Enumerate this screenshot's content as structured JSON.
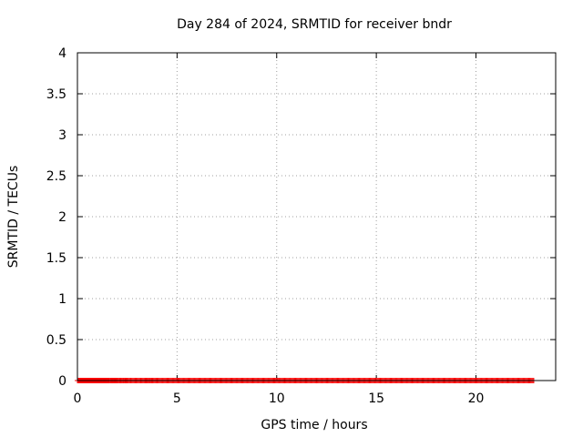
{
  "chart_data": {
    "type": "scatter",
    "title": "Day 284 of 2024, SRMTID for receiver bndr",
    "xlabel": "GPS time / hours",
    "ylabel": "SRMTID / TECUs",
    "xlim": [
      0,
      24
    ],
    "ylim": [
      0,
      4
    ],
    "xticks": [
      0,
      5,
      10,
      15,
      20
    ],
    "yticks": [
      0,
      0.5,
      1,
      1.5,
      2,
      2.5,
      3,
      3.5,
      4
    ],
    "xtick_labels": [
      "0",
      "5",
      "10",
      "15",
      "20"
    ],
    "ytick_labels": [
      "0",
      "0.5",
      "1",
      "1.5",
      "2",
      "2.5",
      "3",
      "3.5",
      "4"
    ],
    "grid": true,
    "marker": "plus",
    "color": "#ff0000",
    "series": [
      {
        "name": "SRMTID",
        "x": [
          0.0,
          0.05,
          0.1,
          0.15,
          0.2,
          0.25,
          0.3,
          0.35,
          0.4,
          0.45,
          0.5,
          0.55,
          0.6,
          0.65,
          0.7,
          0.75,
          0.8,
          0.85,
          0.9,
          0.95,
          1.0,
          1.05,
          1.1,
          1.15,
          1.2,
          1.25,
          1.3,
          1.35,
          1.4,
          1.45,
          1.5,
          1.55,
          1.6,
          1.65,
          1.7,
          1.75,
          1.8,
          1.85,
          1.9,
          1.95,
          2.0,
          2.05,
          2.1,
          2.15,
          2.2,
          2.25,
          2.3,
          2.35,
          2.4,
          2.45,
          2.5,
          2.55,
          2.6,
          2.65,
          2.7,
          2.75,
          2.8,
          2.85,
          2.9,
          2.95,
          3.0,
          3.05,
          3.1,
          3.15,
          3.2,
          3.25,
          3.3,
          3.35,
          3.4,
          3.45,
          3.5,
          3.55,
          3.6,
          3.65,
          3.7,
          3.75,
          3.8,
          3.85,
          3.9,
          3.95,
          4.0,
          4.05,
          4.1,
          4.15,
          4.2,
          4.25,
          4.3,
          4.35,
          4.4,
          4.45,
          4.5,
          4.55,
          4.6,
          4.65,
          4.7,
          4.75,
          4.8,
          4.85,
          4.9,
          4.95,
          5.0,
          5.05,
          5.1,
          5.15,
          5.2,
          5.25,
          5.3,
          5.35,
          5.4,
          5.45,
          5.5,
          5.55,
          5.6,
          5.65,
          5.7,
          5.75,
          5.8,
          5.85,
          5.9,
          5.95,
          6.0,
          6.05,
          6.1,
          6.15,
          6.2,
          6.25,
          6.3,
          6.35,
          6.4,
          6.45,
          6.5,
          6.55,
          6.6,
          6.65,
          6.7,
          6.75,
          6.8,
          6.85,
          6.9,
          6.95,
          7.0,
          7.05,
          7.1,
          7.15,
          7.2,
          7.25,
          7.3,
          7.35,
          7.4,
          7.45,
          7.5,
          7.55,
          7.6,
          7.65,
          7.7,
          7.75,
          7.8,
          7.85,
          7.9,
          7.95,
          8.0,
          8.05,
          8.1,
          8.15,
          8.2,
          8.25,
          8.3,
          8.35,
          8.4,
          8.45,
          8.5,
          8.55,
          8.6,
          8.65,
          8.7,
          8.75,
          8.8,
          8.85,
          8.9,
          8.95,
          9.0,
          9.05,
          9.1,
          9.15,
          9.2,
          9.25,
          9.3,
          9.35,
          9.4,
          9.45,
          9.5,
          9.55,
          9.6,
          9.65,
          9.7,
          9.75,
          9.8,
          9.85,
          9.9,
          9.95,
          10.0,
          10.05,
          10.1,
          10.15,
          10.2,
          10.25,
          10.3,
          10.35,
          10.4,
          10.45,
          10.5,
          10.55,
          10.6,
          10.65,
          10.7,
          10.75,
          10.8,
          10.85,
          10.9,
          10.95,
          11.0,
          11.05,
          11.1,
          11.15,
          11.2,
          11.25,
          11.3,
          11.35,
          11.4,
          11.45,
          11.5,
          11.55,
          11.6,
          11.65,
          11.7,
          11.75,
          11.8,
          11.85,
          11.9,
          11.95,
          12.0,
          12.05,
          12.1,
          12.15,
          12.2,
          12.25,
          12.3,
          12.35,
          12.4,
          12.45,
          12.5,
          12.55,
          12.6,
          12.65,
          12.7,
          12.75,
          12.8,
          12.85,
          12.9,
          12.95,
          13.0,
          13.05,
          13.1,
          13.15,
          13.2,
          13.25,
          13.3,
          13.35,
          13.4,
          13.45,
          13.5,
          13.55,
          13.6,
          13.65,
          13.7,
          13.75,
          13.8,
          13.85,
          13.9,
          13.95,
          14.0,
          14.05,
          14.1,
          14.15,
          14.2,
          14.25,
          14.3,
          14.35,
          14.4,
          14.45,
          14.5,
          14.55,
          14.6,
          14.65,
          14.7,
          14.75,
          14.8,
          14.85,
          14.9,
          14.95,
          15.0,
          15.05,
          15.1,
          15.15,
          15.2,
          15.25,
          15.3,
          15.35,
          15.4,
          15.45,
          15.5,
          15.55,
          15.6,
          15.65,
          15.7,
          15.75,
          15.8,
          15.85,
          15.9,
          15.95,
          16.0,
          16.05,
          16.1,
          16.15,
          16.2,
          16.25,
          16.3,
          16.35,
          16.4,
          16.45,
          16.5,
          16.55,
          16.6,
          16.65,
          16.7,
          16.75,
          16.8,
          16.85,
          16.9,
          16.95,
          17.0,
          17.05,
          17.1,
          17.15,
          17.2,
          17.25,
          17.3,
          17.35,
          17.4,
          17.45,
          17.5,
          17.55,
          17.6,
          17.65,
          17.7,
          17.75,
          17.8,
          17.85,
          17.9,
          17.95,
          18.0,
          18.05,
          18.1,
          18.15,
          18.2,
          18.25,
          18.3,
          18.35,
          18.4,
          18.45,
          18.5,
          18.55,
          18.6,
          18.65,
          18.7,
          18.75,
          18.8,
          18.85,
          18.9,
          18.95,
          19.0,
          19.05,
          19.1,
          19.15,
          19.2,
          19.25,
          19.3,
          19.35,
          19.4,
          19.45,
          19.5,
          19.55,
          19.6,
          19.65,
          19.7,
          19.75,
          19.8,
          19.85,
          19.9,
          19.95,
          20.0,
          20.05,
          20.1,
          20.15,
          20.2,
          20.25,
          20.3,
          20.35,
          20.4,
          20.45,
          20.5,
          20.55,
          20.6,
          20.65,
          20.7,
          20.75,
          20.8,
          20.85,
          20.9,
          20.95,
          21.0,
          21.05,
          21.1,
          21.15,
          21.2,
          21.25,
          21.3,
          21.35,
          21.4,
          21.45,
          21.5,
          21.55,
          21.6,
          21.65,
          21.7,
          21.75,
          21.8,
          21.85,
          21.9,
          21.95,
          22.0,
          22.05,
          22.1,
          22.15,
          22.2,
          22.25,
          22.3,
          22.35,
          22.4,
          22.45,
          22.5,
          22.55,
          22.6,
          22.65,
          22.7,
          22.75,
          22.8,
          22.85,
          22.9,
          0.7,
          0.85,
          1.7,
          2.3,
          2.5,
          2.45,
          2.2,
          1.9,
          1.4,
          0.9,
          0.6,
          0.8,
          1.4,
          3.8,
          3.7,
          3.6,
          3.4,
          3.15,
          2.7,
          2.1,
          1.75,
          1.4,
          1.2,
          1.05,
          0.95,
          0.85,
          0.8,
          1.9,
          1.75,
          1.6,
          0.95,
          0.75,
          1.55,
          1.5,
          1.3,
          1.6,
          1.55,
          1.45,
          1.2,
          1.0,
          0.95,
          0.9,
          0.8,
          0.75,
          0.65,
          0.7,
          0.75,
          0.85,
          0.8,
          0.75,
          0.7,
          0.65,
          0.55,
          0.5,
          1.2,
          1.1,
          1.0,
          1.1,
          1.0,
          0.9,
          0.75,
          0.7,
          0.6,
          0.55,
          0.5,
          0.45,
          0.4,
          0.35,
          0.3,
          0.3,
          0.35,
          0.3,
          0.25,
          0.3,
          0.35,
          0.4,
          0.45,
          0.5,
          0.55,
          0.5,
          0.45,
          0.45,
          0.5,
          0.55,
          1.15,
          1.05,
          0.95,
          0.85,
          0.75,
          0.65,
          0.6,
          0.55,
          0.5,
          0.45,
          0.4,
          0.35,
          0.3,
          0.3,
          0.35,
          0.3,
          0.25,
          0.3,
          0.35,
          0.3,
          0.25,
          0.3,
          0.35,
          0.4,
          0.45,
          0.5,
          0.55,
          0.5,
          0.45,
          0.4,
          0.35,
          0.3,
          0.35,
          0.4,
          0.45,
          0.5,
          0.7,
          0.65,
          0.6,
          0.5,
          0.55,
          0.5,
          0.45,
          0.4,
          0.35,
          0.4,
          0.45,
          0.5,
          0.45,
          0.4,
          0.35,
          0.3,
          0.35,
          0.3,
          0.25,
          0.3,
          0.35,
          0.4,
          0.45,
          0.4,
          0.35,
          0.3,
          0.25,
          0.3,
          0.35,
          0.4,
          0.45,
          0.4,
          0.35,
          0.3,
          0.35,
          0.4,
          0.5,
          0.45,
          0.4,
          0.35,
          0.3,
          0.35,
          0.3,
          0.25,
          0.3,
          0.35,
          0.4,
          0.45,
          0.5,
          0.6,
          0.5,
          0.5,
          0.45,
          0.45,
          0.4,
          0.4,
          0.35,
          0.3,
          0.3,
          0.25,
          0.2,
          0.2,
          0.25,
          0.3,
          0.35,
          0.3,
          0.25,
          0.25,
          0.2,
          0.15,
          0.15,
          0.2,
          0.25,
          0.2,
          0.15,
          0.15,
          0.2,
          0.25,
          0.3,
          0.35,
          0.4,
          0.35,
          0.3,
          0.25,
          0.2,
          0.2,
          0.25,
          0.3,
          0.35,
          0.3,
          0.25,
          0.2,
          0.25,
          0.3,
          0.25,
          0.2,
          0.15,
          0.2,
          0.25,
          0.3,
          0.35,
          0.3,
          0.25,
          0.2,
          0.15,
          0.1,
          0.1,
          0.15,
          0.2,
          0.25,
          0.2,
          0.15,
          0.2,
          0.25,
          0.3,
          0.35,
          0.3,
          0.25,
          0.2,
          0.15,
          0.2,
          0.25,
          0.2,
          0.2,
          0.25,
          0.3,
          0.35,
          0.4,
          0.45,
          0.5,
          0.55,
          0.45,
          0.4,
          0.35,
          0.3,
          0.25,
          0.2,
          0.25,
          0.3,
          0.35,
          0.3,
          0.25,
          0.2,
          0.2,
          0.25,
          0.3,
          0.35,
          0.4,
          0.35,
          0.3,
          0.25,
          0.2,
          0.15,
          0.2,
          0.25,
          0.3,
          0.35,
          0.3,
          0.25,
          0.2,
          0.15,
          0.1,
          0.15,
          0.2,
          0.25,
          0.3,
          0.35,
          0.3,
          0.25,
          0.2,
          0.25,
          0.3,
          0.35,
          0.4,
          0.45,
          0.5,
          0.55,
          0.6,
          0.55,
          0.5,
          0.45,
          0.4,
          0.35,
          0.3,
          0.35,
          0.4,
          0.45,
          0.5,
          0.7,
          0.75,
          0.8,
          0.9,
          1.05,
          1.15,
          1.2,
          1.15,
          1.2,
          1.5,
          1.6,
          1.75,
          1.95,
          1.85,
          1.7,
          0.95,
          0.85,
          0.8,
          0.75,
          0.7,
          0.75,
          0.8,
          1.05,
          0.9,
          0.8,
          0.7,
          0.6,
          0.55,
          0.6,
          0.65,
          0.7,
          0.75,
          0.7,
          0.65,
          0.6,
          0.55,
          0.5,
          0.55,
          0.6,
          0.65,
          0.7,
          0.75,
          0.8,
          0.75,
          0.7,
          0.65,
          0.6,
          0.55,
          0.6,
          0.65,
          0.7,
          0.75,
          0.8,
          0.85,
          0.8,
          0.75,
          0.7,
          0.75,
          0.8,
          0.85,
          0.8,
          0.75,
          0.7,
          0.65,
          0.6,
          0.65,
          0.7,
          0.75,
          0.7,
          0.65,
          0.6,
          0.65,
          0.7,
          0.65,
          0.6,
          0.55,
          0.5,
          0.55,
          0.6,
          0.65,
          0.7,
          0.75,
          0.8,
          0.85,
          0.8,
          0.75,
          0.7,
          0.65,
          0.6,
          0.55,
          0.6,
          0.65,
          0.7,
          0.75,
          0.8,
          1.4,
          1.6,
          1.8,
          2.0,
          2.2,
          1.95,
          1.45,
          1.25,
          1.0,
          0.85,
          0.7,
          0.6,
          0.55,
          0.5,
          0.45,
          0.4,
          0.45,
          0.5,
          0.55,
          0.6,
          0.65,
          0.7,
          0.75,
          0.8,
          0.75,
          0.7,
          0.65,
          0.6,
          0.55,
          0.5,
          0.55,
          0.6,
          0.65,
          0.7,
          0.75,
          0.8,
          0.75,
          0.7,
          0.65,
          0.6,
          0.55,
          0.6,
          0.65,
          0.7,
          0.75,
          0.8,
          0.85,
          0.9,
          0.95,
          1.0,
          1.3,
          1.4,
          1.35,
          1.25,
          1.0,
          0.9,
          0.8,
          0.75,
          0.7,
          0.65,
          0.6,
          0.55,
          0.5,
          0.55,
          0.6,
          0.65,
          0.7,
          0.75
        ]
      }
    ]
  }
}
